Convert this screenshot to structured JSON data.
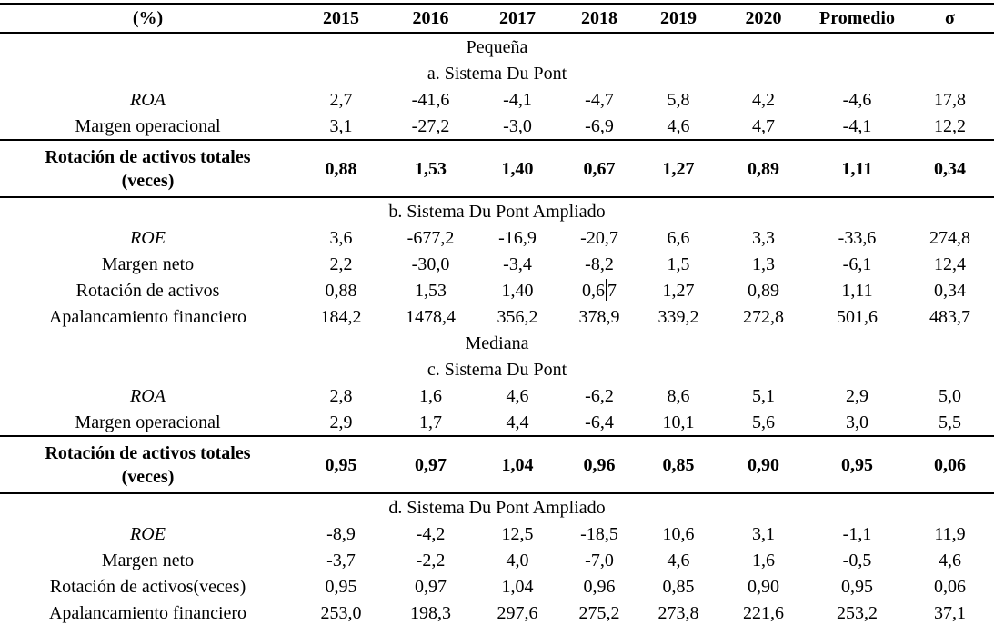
{
  "table": {
    "header": {
      "columns": [
        "(%)",
        "2015",
        "2016",
        "2017",
        "2018",
        "2019",
        "2020",
        "Promedio",
        "σ"
      ]
    },
    "groups": [
      {
        "title": "Pequeña",
        "sections": [
          {
            "title": "a. Sistema Du Pont",
            "rows": [
              {
                "label": "ROA",
                "italic": true,
                "values": [
                  "2,7",
                  "-41,6",
                  "-4,1",
                  "-4,7",
                  "5,8",
                  "4,2",
                  "-4,6",
                  "17,8"
                ]
              },
              {
                "label": "Margen operacional",
                "values": [
                  "3,1",
                  "-27,2",
                  "-3,0",
                  "-6,9",
                  "4,6",
                  "4,7",
                  "-4,1",
                  "12,2"
                ]
              },
              {
                "label": "Rotación de activos totales (veces)",
                "label_lines": [
                  "Rotación de activos totales",
                  "(veces)"
                ],
                "bold": true,
                "values": [
                  "0,88",
                  "1,53",
                  "1,40",
                  "0,67",
                  "1,27",
                  "0,89",
                  "1,11",
                  "0,34"
                ]
              }
            ]
          },
          {
            "title": "b. Sistema Du Pont Ampliado",
            "rows": [
              {
                "label": "ROE",
                "italic": true,
                "values": [
                  "3,6",
                  "-677,2",
                  "-16,9",
                  "-20,7",
                  "6,6",
                  "3,3",
                  "-33,6",
                  "274,8"
                ]
              },
              {
                "label": "Margen neto",
                "values": [
                  "2,2",
                  "-30,0",
                  "-3,4",
                  "-8,2",
                  "1,5",
                  "1,3",
                  "-6,1",
                  "12,4"
                ]
              },
              {
                "label": "Rotación de activos",
                "values": [
                  "0,88",
                  "1,53",
                  "1,40",
                  "0,67",
                  "1,27",
                  "0,89",
                  "1,11",
                  "0,34"
                ],
                "cursor": {
                  "col": 3,
                  "before": "0,6",
                  "after": "7"
                }
              },
              {
                "label": "Apalancamiento financiero",
                "values": [
                  "184,2",
                  "1478,4",
                  "356,2",
                  "378,9",
                  "339,2",
                  "272,8",
                  "501,6",
                  "483,7"
                ]
              }
            ]
          }
        ]
      },
      {
        "title": "Mediana",
        "sections": [
          {
            "title": "c. Sistema Du Pont",
            "rows": [
              {
                "label": "ROA",
                "italic": true,
                "values": [
                  "2,8",
                  "1,6",
                  "4,6",
                  "-6,2",
                  "8,6",
                  "5,1",
                  "2,9",
                  "5,0"
                ]
              },
              {
                "label": "Margen operacional",
                "values": [
                  "2,9",
                  "1,7",
                  "4,4",
                  "-6,4",
                  "10,1",
                  "5,6",
                  "3,0",
                  "5,5"
                ]
              },
              {
                "label": "Rotación de activos totales (veces)",
                "label_lines": [
                  "Rotación de activos totales",
                  "(veces)"
                ],
                "bold": true,
                "values": [
                  "0,95",
                  "0,97",
                  "1,04",
                  "0,96",
                  "0,85",
                  "0,90",
                  "0,95",
                  "0,06"
                ]
              }
            ]
          },
          {
            "title": "d. Sistema Du Pont Ampliado",
            "rows": [
              {
                "label": "ROE",
                "italic": true,
                "values": [
                  "-8,9",
                  "-4,2",
                  "12,5",
                  "-18,5",
                  "10,6",
                  "3,1",
                  "-1,1",
                  "11,9"
                ]
              },
              {
                "label": "Margen neto",
                "values": [
                  "-3,7",
                  "-2,2",
                  "4,0",
                  "-7,0",
                  "4,6",
                  "1,6",
                  "-0,5",
                  "4,6"
                ]
              },
              {
                "label": "Rotación de activos(veces)",
                "values": [
                  "0,95",
                  "0,97",
                  "1,04",
                  "0,96",
                  "0,85",
                  "0,90",
                  "0,95",
                  "0,06"
                ]
              },
              {
                "label": "Apalancamiento financiero",
                "values": [
                  "253,0",
                  "198,3",
                  "297,6",
                  "275,2",
                  "273,8",
                  "221,6",
                  "253,2",
                  "37,1"
                ]
              }
            ]
          }
        ]
      }
    ]
  },
  "colors": {
    "text": "#000000",
    "background": "#ffffff",
    "rule": "#000000"
  }
}
